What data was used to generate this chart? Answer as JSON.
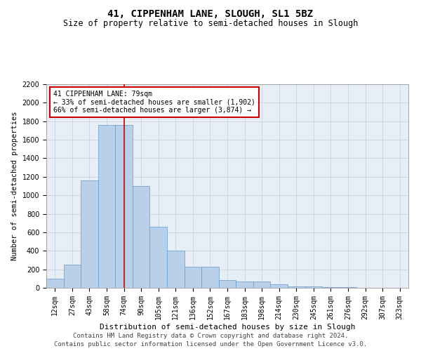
{
  "title_line1": "41, CIPPENHAM LANE, SLOUGH, SL1 5BZ",
  "title_line2": "Size of property relative to semi-detached houses in Slough",
  "xlabel": "Distribution of semi-detached houses by size in Slough",
  "ylabel": "Number of semi-detached properties",
  "footer_line1": "Contains HM Land Registry data © Crown copyright and database right 2024.",
  "footer_line2": "Contains public sector information licensed under the Open Government Licence v3.0.",
  "categories": [
    "12sqm",
    "27sqm",
    "43sqm",
    "58sqm",
    "74sqm",
    "90sqm",
    "105sqm",
    "121sqm",
    "136sqm",
    "152sqm",
    "167sqm",
    "183sqm",
    "198sqm",
    "214sqm",
    "230sqm",
    "245sqm",
    "261sqm",
    "276sqm",
    "292sqm",
    "307sqm",
    "323sqm"
  ],
  "values": [
    100,
    250,
    1160,
    1760,
    1760,
    1100,
    660,
    400,
    230,
    230,
    80,
    65,
    65,
    35,
    15,
    15,
    10,
    10,
    0,
    0,
    0
  ],
  "bar_color": "#b8d0ea",
  "bar_edge_color": "#6699cc",
  "property_line_x": 4.0,
  "property_sqm": 79,
  "pct_smaller": 33,
  "n_smaller": 1902,
  "pct_larger": 66,
  "n_larger": 3874,
  "annotation_box_color": "#cc0000",
  "vline_color": "#cc0000",
  "ylim": [
    0,
    2200
  ],
  "yticks": [
    0,
    200,
    400,
    600,
    800,
    1000,
    1200,
    1400,
    1600,
    1800,
    2000,
    2200
  ],
  "grid_color": "#c8d4e4",
  "bg_color": "#e8eef6",
  "title1_fontsize": 10,
  "title2_fontsize": 8.5,
  "xlabel_fontsize": 8,
  "ylabel_fontsize": 7.5,
  "tick_fontsize": 7,
  "annot_fontsize": 7,
  "footer_fontsize": 6.5
}
